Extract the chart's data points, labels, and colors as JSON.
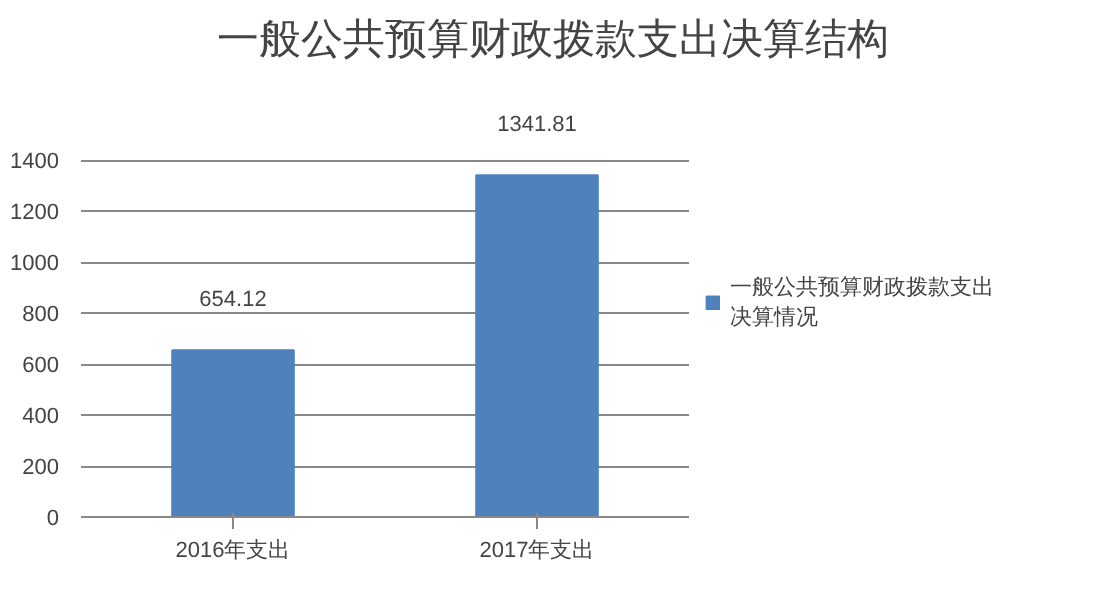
{
  "chart_data": {
    "type": "bar",
    "title": "一般公共预算财政拨款支出决算结构",
    "categories": [
      "2016年支出",
      "2017年支出"
    ],
    "series": [
      {
        "name": "一般公共预算财政拨款支出决算情况",
        "color": "#4f81bd",
        "values": [
          654.12,
          1341.81
        ]
      }
    ],
    "ylim": [
      0,
      1400
    ],
    "yticks": [
      0,
      200,
      400,
      600,
      800,
      1000,
      1200,
      1400
    ],
    "grid": "y",
    "legend": "right",
    "data_labels": true
  }
}
